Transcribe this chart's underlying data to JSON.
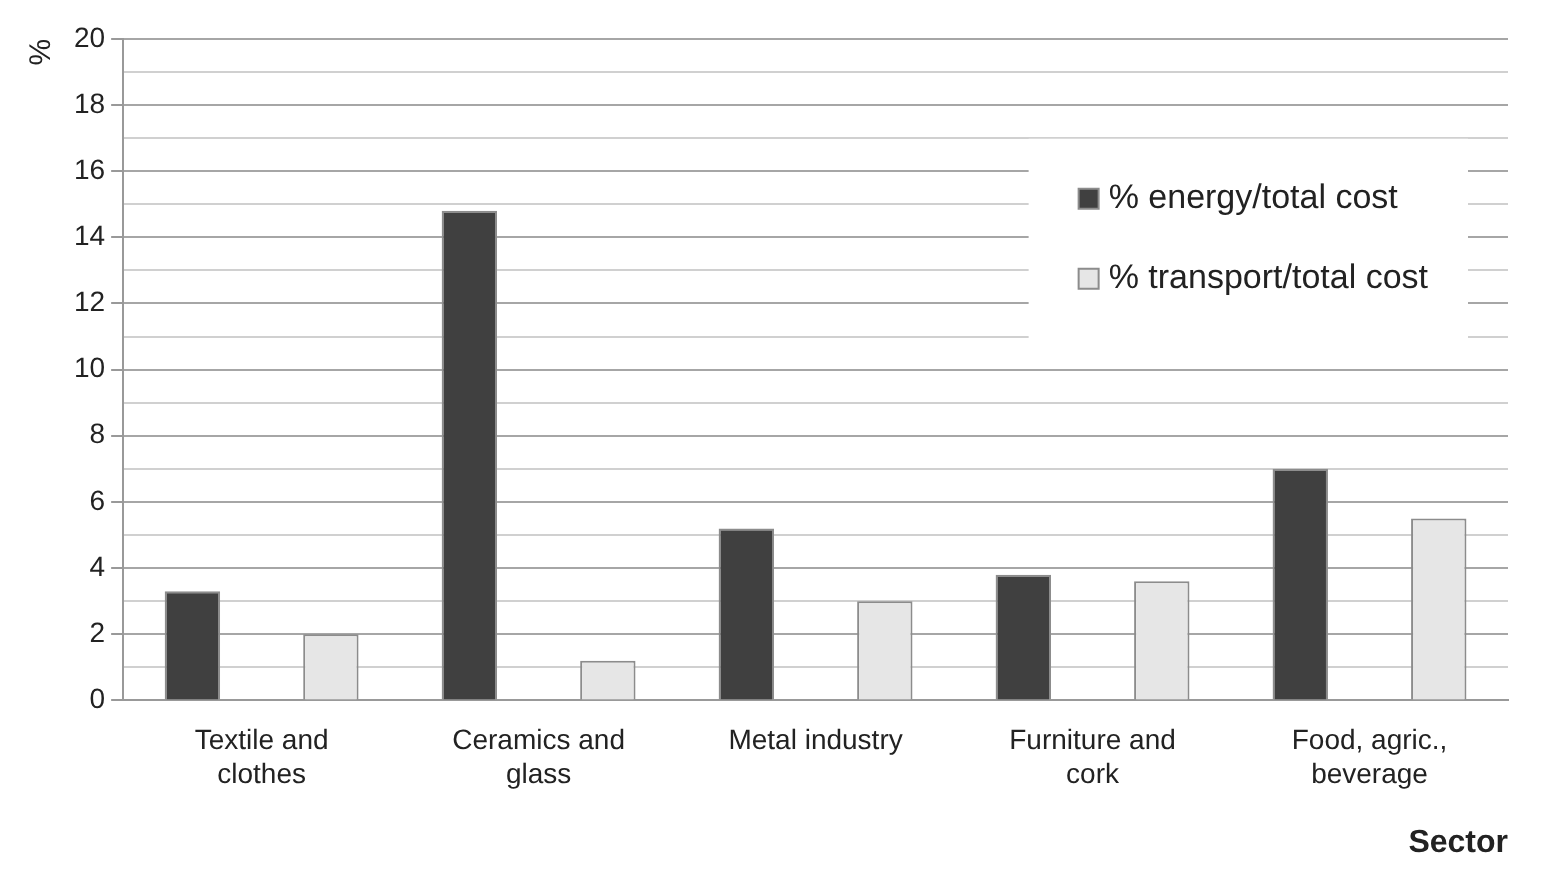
{
  "chart_data": {
    "type": "bar",
    "xlabel": "Sector",
    "ylabel": "%",
    "categories": [
      "Textile and clothes",
      "Ceramics and glass",
      "Metal industry",
      "Furniture and cork",
      "Food, agric., beverage"
    ],
    "series": [
      {
        "name": "% energy/total cost",
        "color": "#404040",
        "values": [
          3.3,
          14.8,
          5.2,
          3.8,
          7.0
        ]
      },
      {
        "name": "% transport/total cost",
        "color": "#e6e6e6",
        "values": [
          2.0,
          1.2,
          3.0,
          3.6,
          5.5
        ]
      }
    ],
    "ylim": [
      0,
      20
    ],
    "yticks": [
      0,
      {
        "value": 1,
        "label": null
      },
      2,
      {
        "value": 3,
        "label": null
      },
      4,
      {
        "value": 5,
        "label": null
      },
      6,
      {
        "value": 7,
        "label": null
      },
      8,
      {
        "value": 9,
        "label": null
      },
      10,
      {
        "value": 11,
        "label": null
      },
      12,
      {
        "value": 13,
        "label": null
      },
      14,
      {
        "value": 15,
        "label": null
      },
      16,
      {
        "value": 17,
        "label": null
      },
      18,
      {
        "value": 19,
        "label": null
      },
      20
    ],
    "grid": "y",
    "legend": "top right"
  }
}
